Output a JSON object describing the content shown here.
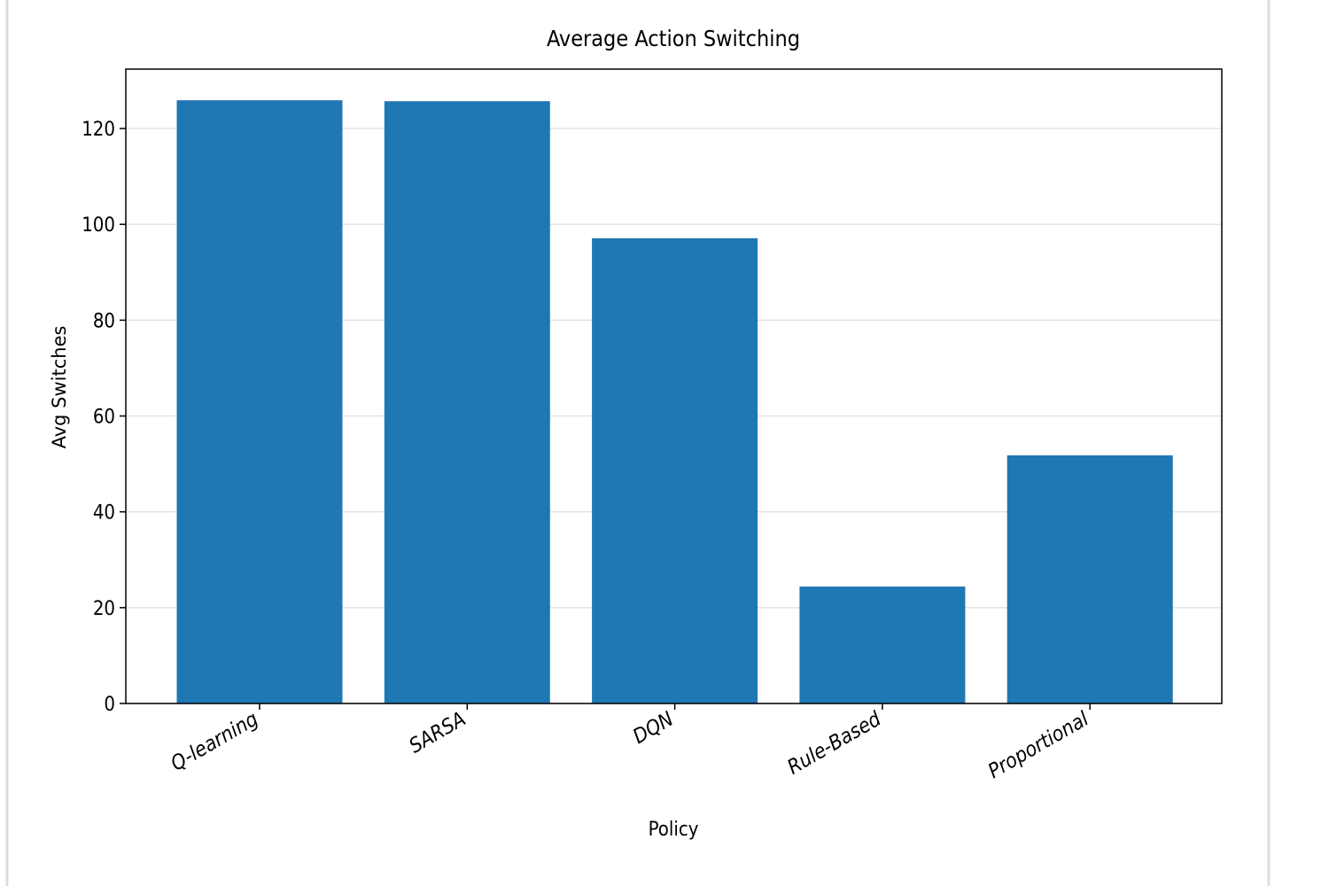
{
  "chart_data": {
    "type": "bar",
    "title": "Average Action Switching",
    "xlabel": "Policy",
    "ylabel": "Avg Switches",
    "categories": [
      "Q-learning",
      "SARSA",
      "DQN",
      "Rule-Based",
      "Proportional"
    ],
    "values": [
      125.9,
      125.7,
      97.1,
      24.4,
      51.8
    ],
    "color": "#1f77b4",
    "ylim": [
      0,
      132.4
    ],
    "yticks": [
      0,
      20,
      40,
      60,
      80,
      100,
      120
    ],
    "grid": true
  }
}
